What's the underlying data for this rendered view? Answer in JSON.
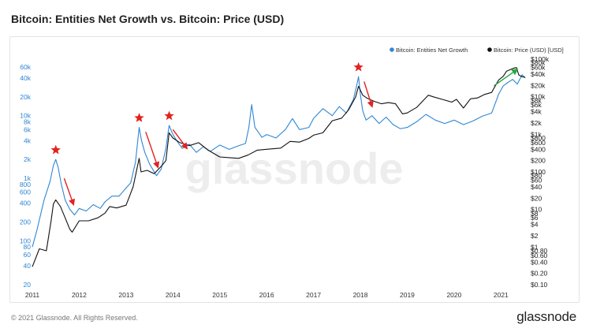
{
  "page": {
    "title": "Bitcoin: Entities Net Growth vs. Bitcoin: Price (USD)",
    "copyright": "© 2021 Glassnode. All Rights Reserved.",
    "brand": "glassnode",
    "watermark": "glassnode"
  },
  "colors": {
    "growth": "#2f86d4",
    "price": "#111111",
    "marker": "#e2221f",
    "trend_arrow": "#27a744"
  },
  "chart_data": {
    "type": "line",
    "title": "Bitcoin: Entities Net Growth vs. Bitcoin: Price (USD)",
    "x_ticks": [
      "2011",
      "2012",
      "2013",
      "2014",
      "2015",
      "2016",
      "2017",
      "2018",
      "2019",
      "2020",
      "2021"
    ],
    "xlim": [
      2011.0,
      2021.6
    ],
    "legend": {
      "placement": "top-right",
      "entries": [
        "Bitcoin: Entities Net Growth",
        "Bitcoin: Price (USD) [USD]"
      ]
    },
    "grid": false,
    "left_axis": {
      "scale": "log",
      "ylim": [
        20,
        80000
      ],
      "ticks": [
        {
          "label": "60k",
          "value": 60000
        },
        {
          "label": "40k",
          "value": 40000
        },
        {
          "label": "20k",
          "value": 20000
        },
        {
          "label": "10k",
          "value": 10000
        },
        {
          "label": "8k",
          "value": 8000
        },
        {
          "label": "6k",
          "value": 6000
        },
        {
          "label": "4k",
          "value": 4000
        },
        {
          "label": "2k",
          "value": 2000
        },
        {
          "label": "1k",
          "value": 1000
        },
        {
          "label": "800",
          "value": 800
        },
        {
          "label": "600",
          "value": 600
        },
        {
          "label": "400",
          "value": 400
        },
        {
          "label": "200",
          "value": 200
        },
        {
          "label": "100",
          "value": 100
        },
        {
          "label": "80",
          "value": 80
        },
        {
          "label": "60",
          "value": 60
        },
        {
          "label": "40",
          "value": 40
        },
        {
          "label": "20",
          "value": 20
        }
      ]
    },
    "right_axis": {
      "scale": "log",
      "ylim": [
        0.1,
        100000
      ],
      "ticks": [
        {
          "label": "$100k",
          "value": 100000
        },
        {
          "label": "$80k",
          "value": 80000
        },
        {
          "label": "$60k",
          "value": 60000
        },
        {
          "label": "$40k",
          "value": 40000
        },
        {
          "label": "$20k",
          "value": 20000
        },
        {
          "label": "$10k",
          "value": 10000
        },
        {
          "label": "$8k",
          "value": 8000
        },
        {
          "label": "$6k",
          "value": 6000
        },
        {
          "label": "$4k",
          "value": 4000
        },
        {
          "label": "$2k",
          "value": 2000
        },
        {
          "label": "$1k",
          "value": 1000
        },
        {
          "label": "$800",
          "value": 800
        },
        {
          "label": "$600",
          "value": 600
        },
        {
          "label": "$400",
          "value": 400
        },
        {
          "label": "$200",
          "value": 200
        },
        {
          "label": "$100",
          "value": 100
        },
        {
          "label": "$80",
          "value": 80
        },
        {
          "label": "$60",
          "value": 60
        },
        {
          "label": "$40",
          "value": 40
        },
        {
          "label": "$20",
          "value": 20
        },
        {
          "label": "$10",
          "value": 10
        },
        {
          "label": "$8",
          "value": 8
        },
        {
          "label": "$6",
          "value": 6
        },
        {
          "label": "$4",
          "value": 4
        },
        {
          "label": "$2",
          "value": 2
        },
        {
          "label": "$1",
          "value": 1
        },
        {
          "label": "$0.80",
          "value": 0.8
        },
        {
          "label": "$0.60",
          "value": 0.6
        },
        {
          "label": "$0.40",
          "value": 0.4
        },
        {
          "label": "$0.20",
          "value": 0.2
        },
        {
          "label": "$0.10",
          "value": 0.1
        }
      ]
    },
    "series": [
      {
        "name": "Bitcoin: Entities Net Growth",
        "axis": "left",
        "points": [
          [
            2011.0,
            80
          ],
          [
            2011.1,
            150
          ],
          [
            2011.25,
            450
          ],
          [
            2011.38,
            900
          ],
          [
            2011.45,
            1600
          ],
          [
            2011.5,
            2000
          ],
          [
            2011.55,
            1500
          ],
          [
            2011.62,
            800
          ],
          [
            2011.7,
            450
          ],
          [
            2011.8,
            320
          ],
          [
            2011.9,
            260
          ],
          [
            2012.0,
            330
          ],
          [
            2012.15,
            300
          ],
          [
            2012.3,
            380
          ],
          [
            2012.45,
            330
          ],
          [
            2012.55,
            420
          ],
          [
            2012.7,
            520
          ],
          [
            2012.85,
            520
          ],
          [
            2013.0,
            700
          ],
          [
            2013.1,
            850
          ],
          [
            2013.2,
            1800
          ],
          [
            2013.28,
            6500
          ],
          [
            2013.33,
            4000
          ],
          [
            2013.4,
            2600
          ],
          [
            2013.5,
            1700
          ],
          [
            2013.65,
            1100
          ],
          [
            2013.75,
            1400
          ],
          [
            2013.85,
            3000
          ],
          [
            2013.92,
            7000
          ],
          [
            2014.0,
            5000
          ],
          [
            2014.1,
            3800
          ],
          [
            2014.2,
            3000
          ],
          [
            2014.35,
            3500
          ],
          [
            2014.5,
            2600
          ],
          [
            2014.65,
            3200
          ],
          [
            2014.8,
            2700
          ],
          [
            2015.0,
            3400
          ],
          [
            2015.2,
            2900
          ],
          [
            2015.4,
            3300
          ],
          [
            2015.55,
            3600
          ],
          [
            2015.62,
            6500
          ],
          [
            2015.68,
            15000
          ],
          [
            2015.75,
            6500
          ],
          [
            2015.9,
            4500
          ],
          [
            2016.0,
            5000
          ],
          [
            2016.2,
            4400
          ],
          [
            2016.4,
            6000
          ],
          [
            2016.55,
            9000
          ],
          [
            2016.7,
            6000
          ],
          [
            2016.9,
            6500
          ],
          [
            2017.0,
            9000
          ],
          [
            2017.2,
            13000
          ],
          [
            2017.4,
            10000
          ],
          [
            2017.55,
            14000
          ],
          [
            2017.7,
            11000
          ],
          [
            2017.85,
            18000
          ],
          [
            2017.92,
            30000
          ],
          [
            2017.96,
            42000
          ],
          [
            2018.0,
            22000
          ],
          [
            2018.05,
            12000
          ],
          [
            2018.12,
            8500
          ],
          [
            2018.25,
            10000
          ],
          [
            2018.4,
            7500
          ],
          [
            2018.55,
            9500
          ],
          [
            2018.7,
            7200
          ],
          [
            2018.85,
            6200
          ],
          [
            2019.0,
            6500
          ],
          [
            2019.2,
            8000
          ],
          [
            2019.4,
            10500
          ],
          [
            2019.6,
            8500
          ],
          [
            2019.8,
            7500
          ],
          [
            2020.0,
            8500
          ],
          [
            2020.2,
            7200
          ],
          [
            2020.4,
            8200
          ],
          [
            2020.6,
            9800
          ],
          [
            2020.8,
            11000
          ],
          [
            2020.95,
            22000
          ],
          [
            2021.05,
            30000
          ],
          [
            2021.15,
            34000
          ],
          [
            2021.25,
            38000
          ],
          [
            2021.35,
            32000
          ],
          [
            2021.45,
            45000
          ],
          [
            2021.52,
            40000
          ]
        ]
      },
      {
        "name": "Bitcoin: Price (USD) [USD]",
        "axis": "right",
        "points": [
          [
            2011.0,
            0.3
          ],
          [
            2011.15,
            0.9
          ],
          [
            2011.3,
            0.8
          ],
          [
            2011.4,
            5
          ],
          [
            2011.45,
            14
          ],
          [
            2011.5,
            18
          ],
          [
            2011.6,
            12
          ],
          [
            2011.7,
            6
          ],
          [
            2011.8,
            3
          ],
          [
            2011.85,
            2.5
          ],
          [
            2012.0,
            5
          ],
          [
            2012.2,
            5
          ],
          [
            2012.4,
            6
          ],
          [
            2012.55,
            8
          ],
          [
            2012.65,
            12
          ],
          [
            2012.8,
            11
          ],
          [
            2013.0,
            13
          ],
          [
            2013.15,
            40
          ],
          [
            2013.28,
            230
          ],
          [
            2013.32,
            100
          ],
          [
            2013.45,
            110
          ],
          [
            2013.6,
            90
          ],
          [
            2013.75,
            140
          ],
          [
            2013.85,
            200
          ],
          [
            2013.92,
            1100
          ],
          [
            2014.0,
            800
          ],
          [
            2014.15,
            600
          ],
          [
            2014.35,
            500
          ],
          [
            2014.55,
            600
          ],
          [
            2014.75,
            380
          ],
          [
            2015.0,
            250
          ],
          [
            2015.2,
            240
          ],
          [
            2015.4,
            230
          ],
          [
            2015.6,
            280
          ],
          [
            2015.8,
            380
          ],
          [
            2016.0,
            400
          ],
          [
            2016.3,
            430
          ],
          [
            2016.5,
            650
          ],
          [
            2016.7,
            620
          ],
          [
            2016.9,
            780
          ],
          [
            2017.0,
            950
          ],
          [
            2017.2,
            1100
          ],
          [
            2017.4,
            2300
          ],
          [
            2017.6,
            2700
          ],
          [
            2017.75,
            4500
          ],
          [
            2017.9,
            10000
          ],
          [
            2017.96,
            19000
          ],
          [
            2018.05,
            11000
          ],
          [
            2018.15,
            9000
          ],
          [
            2018.3,
            7500
          ],
          [
            2018.45,
            6500
          ],
          [
            2018.6,
            7000
          ],
          [
            2018.75,
            6500
          ],
          [
            2018.9,
            3500
          ],
          [
            2019.0,
            3700
          ],
          [
            2019.2,
            5200
          ],
          [
            2019.45,
            11000
          ],
          [
            2019.55,
            10000
          ],
          [
            2019.75,
            8500
          ],
          [
            2019.95,
            7200
          ],
          [
            2020.05,
            8500
          ],
          [
            2020.2,
            5000
          ],
          [
            2020.35,
            8800
          ],
          [
            2020.5,
            9300
          ],
          [
            2020.65,
            11500
          ],
          [
            2020.8,
            13000
          ],
          [
            2020.95,
            28000
          ],
          [
            2021.05,
            35000
          ],
          [
            2021.12,
            48000
          ],
          [
            2021.28,
            58000
          ],
          [
            2021.33,
            60000
          ],
          [
            2021.38,
            38000
          ],
          [
            2021.45,
            34000
          ],
          [
            2021.52,
            33000
          ]
        ]
      }
    ],
    "annotations": [
      {
        "type": "star",
        "x": 2011.5,
        "series": "Bitcoin: Entities Net Growth",
        "y": 2000
      },
      {
        "type": "star",
        "x": 2013.28,
        "series": "Bitcoin: Entities Net Growth",
        "y": 6500
      },
      {
        "type": "star",
        "x": 2013.92,
        "series": "Bitcoin: Entities Net Growth",
        "y": 7000
      },
      {
        "type": "star",
        "x": 2017.96,
        "series": "Bitcoin: Entities Net Growth",
        "y": 42000
      },
      {
        "type": "arrow-down",
        "from": [
          2011.68,
          1000
        ],
        "to": [
          2011.88,
          380
        ]
      },
      {
        "type": "arrow-down",
        "from": [
          2013.42,
          5500
        ],
        "to": [
          2013.68,
          1500
        ]
      },
      {
        "type": "arrow-down",
        "from": [
          2014.0,
          6000
        ],
        "to": [
          2014.3,
          3000
        ]
      },
      {
        "type": "arrow-down",
        "from": [
          2018.08,
          35000
        ],
        "to": [
          2018.25,
          14000
        ]
      },
      {
        "type": "arrow-up",
        "from": [
          2020.85,
          30000
        ],
        "to": [
          2021.35,
          55000
        ]
      }
    ]
  }
}
